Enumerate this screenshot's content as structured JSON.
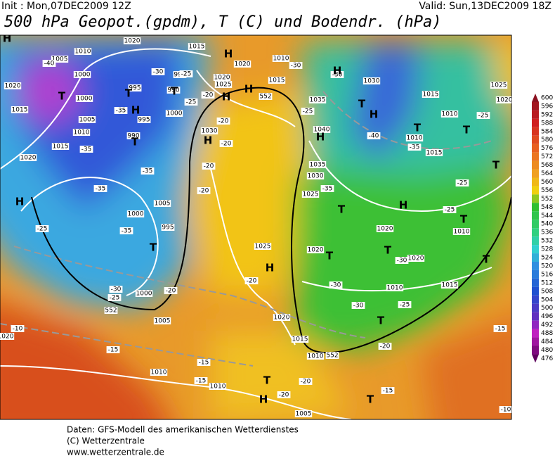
{
  "header": {
    "init": "Init : Mon,07DEC2009  12Z",
    "valid": "Valid: Sun,13DEC2009  18Z",
    "title": "500 hPa Geopot.(gpdm), T (C) und Bodendr. (hPa)"
  },
  "legend": {
    "labels": [
      600,
      596,
      592,
      588,
      584,
      580,
      576,
      572,
      568,
      564,
      560,
      556,
      552,
      548,
      544,
      540,
      536,
      532,
      528,
      524,
      520,
      516,
      512,
      508,
      504,
      500,
      496,
      492,
      488,
      484,
      480,
      476
    ]
  },
  "map": {
    "labels": [
      "1010",
      "1005",
      "1000",
      "1020",
      "1015",
      "1000",
      "995",
      "995",
      "990",
      "1000",
      "995",
      "990",
      "1005",
      "1010",
      "1015",
      "1020",
      "1020",
      "1015",
      "1020",
      "1025",
      "1020",
      "1010",
      "1015",
      "1035",
      "1040",
      "1035",
      "1030",
      "1025",
      "1030",
      "1030",
      "1015",
      "1010",
      "1010",
      "1015",
      "1025",
      "1020",
      "1005",
      "995",
      "1000",
      "1000",
      "1005",
      "1010",
      "1010",
      "1005",
      "1010",
      "1015",
      "1020",
      "1025",
      "1020",
      "1020",
      "1020",
      "1010",
      "1015",
      "1010",
      "1020",
      "-40",
      "-30",
      "-35",
      "-25",
      "-20",
      "-25",
      "-30",
      "-25",
      "-30",
      "-40",
      "-35",
      "-25",
      "-25",
      "-25",
      "-35",
      "-35",
      "-35",
      "-35",
      "-25",
      "-30",
      "-25",
      "-20",
      "-20",
      "-20",
      "-20",
      "-20",
      "-20",
      "-35",
      "-30",
      "-30",
      "-30",
      "-25",
      "-20",
      "-15",
      "-10",
      "-15",
      "-15",
      "-15",
      "-20",
      "-20",
      "-15",
      "-10",
      "552",
      "552",
      "552",
      "H",
      "H",
      "T",
      "T",
      "H",
      "T",
      "T",
      "H",
      "H",
      "H",
      "H",
      "H",
      "T",
      "H",
      "T",
      "T",
      "T",
      "H",
      "T",
      "H",
      "T",
      "H",
      "T",
      "T",
      "T",
      "T",
      "T",
      "H",
      "T",
      "T"
    ]
  },
  "footer": {
    "lines": [
      "Daten: GFS-Modell des amerikanischen Wetterdienstes",
      "(C) Wetterzentrale",
      "www.wetterzentrale.de"
    ]
  }
}
